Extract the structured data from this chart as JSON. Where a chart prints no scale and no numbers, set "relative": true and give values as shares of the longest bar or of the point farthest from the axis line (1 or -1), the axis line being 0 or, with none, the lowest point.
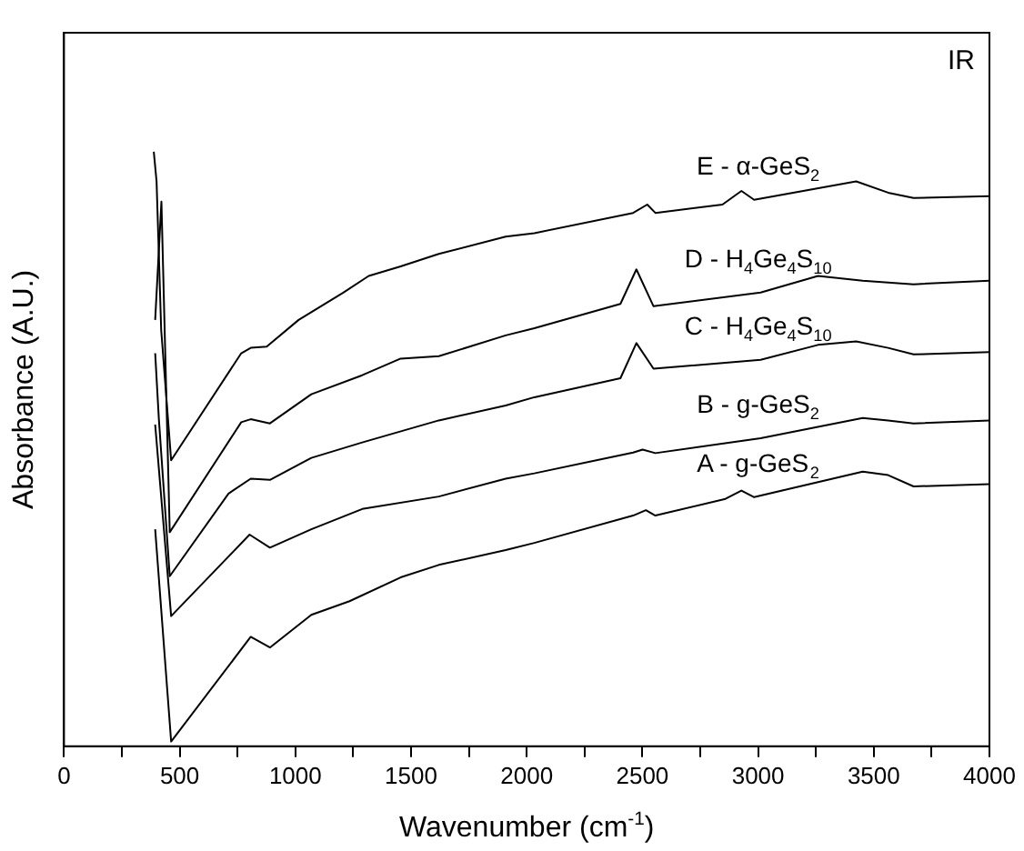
{
  "chart_data": {
    "type": "line",
    "relative": true,
    "xlabel": "Wavenumber (cm$^{-1}$)",
    "ylabel": "Absorbance (A.U.)",
    "annotations": [
      "IR"
    ],
    "xlim": [
      0,
      4000
    ],
    "xticks": [
      0,
      {
        "value": 250,
        "label": null
      },
      500,
      {
        "value": 750,
        "label": null
      },
      1000,
      {
        "value": 1250,
        "label": null
      },
      1500,
      {
        "value": 1750,
        "label": null
      },
      2000,
      {
        "value": 2250,
        "label": null
      },
      2500,
      {
        "value": 2750,
        "label": null
      },
      3000,
      {
        "value": 3250,
        "label": null
      },
      3500,
      {
        "value": 3750,
        "label": null
      },
      4000
    ],
    "grid": false,
    "legend": false,
    "marker": "none",
    "line_style": "solid",
    "series": [
      {
        "name": "A - g-GeS$_{2}$",
        "color": "#000000",
        "x": [
          394,
          463,
          807,
          890,
          1069,
          1234,
          1455,
          1620,
          1909,
          2033,
          2460,
          2515,
          2556,
          2859,
          2928,
          2983,
          3452,
          3562,
          3672,
          4000
        ],
        "values": [
          0.365,
          0.008,
          0.184,
          0.166,
          0.221,
          0.244,
          0.284,
          0.305,
          0.33,
          0.342,
          0.388,
          0.397,
          0.388,
          0.416,
          0.43,
          0.419,
          0.462,
          0.456,
          0.437,
          0.441
        ]
      },
      {
        "name": "B - g-GeS$_{2}$",
        "color": "#000000",
        "x": [
          394,
          463,
          711,
          802,
          890,
          1069,
          1289,
          1620,
          1909,
          2033,
          2460,
          2501,
          2556,
          3011,
          3452,
          3562,
          3672,
          4000
        ],
        "values": [
          0.541,
          0.219,
          0.319,
          0.356,
          0.334,
          0.365,
          0.399,
          0.42,
          0.45,
          0.459,
          0.494,
          0.499,
          0.493,
          0.518,
          0.552,
          0.548,
          0.543,
          0.548
        ]
      },
      {
        "name": "C - H$_{4}$Ge$_{4}$S$_{10}$",
        "color": "#000000",
        "x": [
          394,
          410,
          457,
          711,
          807,
          890,
          1069,
          1289,
          1620,
          1909,
          2033,
          2405,
          2474,
          2548,
          3011,
          3259,
          3424,
          3562,
          3672,
          4000
        ],
        "values": [
          0.661,
          0.55,
          0.286,
          0.425,
          0.45,
          0.448,
          0.485,
          0.511,
          0.548,
          0.573,
          0.587,
          0.619,
          0.678,
          0.635,
          0.65,
          0.675,
          0.681,
          0.67,
          0.659,
          0.663
        ]
      },
      {
        "name": "D - H$_{4}$Ge$_{4}$S$_{10}$",
        "color": "#000000",
        "x": [
          394,
          421,
          457,
          766,
          807,
          890,
          1069,
          1289,
          1455,
          1620,
          1909,
          2033,
          2405,
          2474,
          2548,
          3011,
          3259,
          3452,
          3672,
          4000
        ],
        "values": [
          0.717,
          0.916,
          0.36,
          0.545,
          0.55,
          0.543,
          0.592,
          0.624,
          0.652,
          0.656,
          0.691,
          0.703,
          0.744,
          0.802,
          0.74,
          0.763,
          0.791,
          0.783,
          0.777,
          0.783
        ]
      },
      {
        "name": "E - α-GeS$_{2}$",
        "color": "#000000",
        "x": [
          388,
          400,
          420,
          463,
          766,
          807,
          876,
          1014,
          1207,
          1317,
          1455,
          1620,
          1909,
          2033,
          2460,
          2521,
          2556,
          2846,
          2928,
          2983,
          3424,
          3562,
          3672,
          4000
        ],
        "values": [
          1,
          0.95,
          0.7,
          0.481,
          0.661,
          0.67,
          0.672,
          0.717,
          0.763,
          0.791,
          0.807,
          0.828,
          0.857,
          0.863,
          0.897,
          0.911,
          0.897,
          0.911,
          0.934,
          0.919,
          0.95,
          0.931,
          0.922,
          0.925
        ]
      }
    ]
  }
}
